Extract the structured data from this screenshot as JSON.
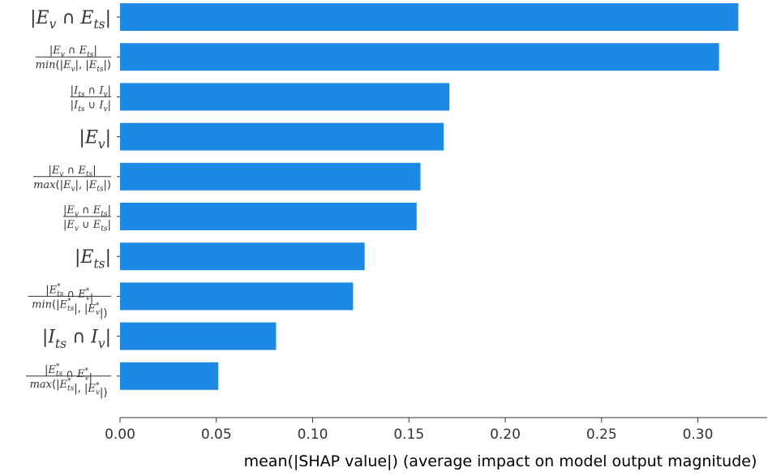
{
  "chart_data": {
    "type": "bar",
    "orientation": "horizontal",
    "categories": [
      "|E_v ∩ E_ts|",
      "|E_v ∩ E_ts| / min(|E_v|, |E_ts|)",
      "|I_ts ∩ I_v| / |I_ts ∪ I_v|",
      "|E_v|",
      "|E_v ∩ E_ts| / max(|E_v|, |E_ts|)",
      "|E_v ∩ E_ts| / |E_v ∪ E_ts|",
      "|E_ts|",
      "|E*_ts ∩ E*_v| / min(|E*_ts|, |E*_v|)",
      "|I_ts ∩ I_v|",
      "|E*_ts ∩ E*_v| / max(|E*_ts|, |E*_v|)"
    ],
    "values": [
      0.321,
      0.311,
      0.171,
      0.168,
      0.156,
      0.154,
      0.127,
      0.121,
      0.081,
      0.051
    ],
    "xlabel": "mean(|SHAP value|) (average impact on model output magnitude)",
    "xticks": [
      "0.00",
      "0.05",
      "0.10",
      "0.15",
      "0.20",
      "0.25",
      "0.30"
    ],
    "xlim": [
      0,
      0.336
    ],
    "grid": false,
    "bar_color": "#1e88e5"
  }
}
